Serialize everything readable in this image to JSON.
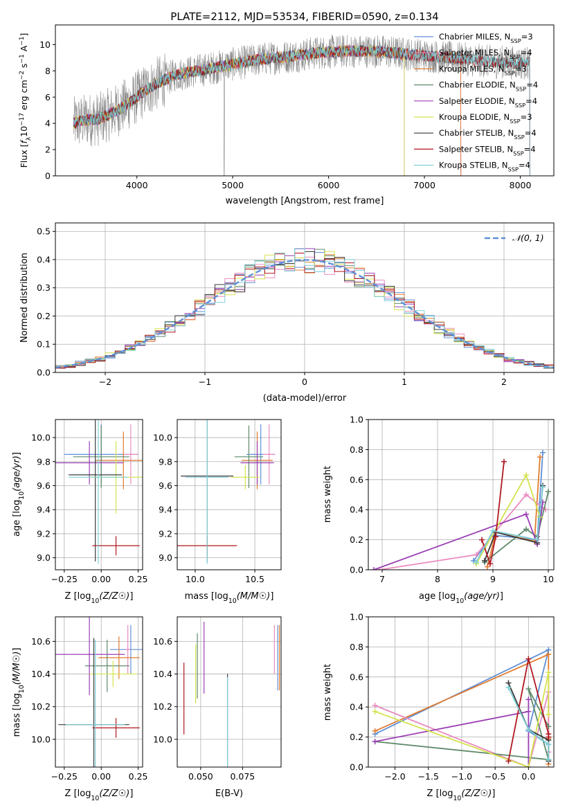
{
  "figure_title": "PLATE=2112, MJD=53534, FIBERID=0590, z=0.134",
  "colors": {
    "c0": "#5f8fd6",
    "c1": "#e07b2e",
    "c2": "#d9a04a",
    "c3": "#5e8a6a",
    "c4": "#9b3fb4",
    "c5": "#d4e24c",
    "c6": "#3a3a3a",
    "c7": "#b0161e",
    "c8": "#7fd0d8",
    "c9": "#e98bbf",
    "gray": "#8a8a8a",
    "grid": "#b0b0b0",
    "normal": "#5f8fd6"
  },
  "chart_data": [
    {
      "type": "line",
      "id": "spectrum",
      "title": "PLATE=2112, MJD=53534, FIBERID=0590, z=0.134",
      "xlabel": "wavelength [Angstrom, rest frame]",
      "ylabel": "Flux [f_λ 10^-17 erg cm^-2 s^-1 A^-1]",
      "xlim": [
        3150,
        8350
      ],
      "ylim": [
        0,
        11.5
      ],
      "xticks": [
        4000,
        5000,
        6000,
        7000,
        8000
      ],
      "yticks": [
        0,
        2,
        4,
        6,
        8,
        10
      ],
      "grid": false,
      "legend_position": "right",
      "data_color": "gray",
      "continuum": {
        "x": [
          3340,
          3500,
          3600,
          3800,
          3950,
          4050,
          4200,
          4400,
          4700,
          5000,
          5300,
          5600,
          5900,
          6200,
          6500,
          6800,
          7100,
          7400,
          7700,
          8000,
          8100
        ],
        "y": [
          4.0,
          4.3,
          4.3,
          5.0,
          5.7,
          6.3,
          7.0,
          7.7,
          8.1,
          8.5,
          8.9,
          9.1,
          9.4,
          9.5,
          9.5,
          9.3,
          9.1,
          8.9,
          8.7,
          8.6,
          8.6
        ]
      },
      "series": [
        {
          "name": "Chabrier MILES, N_SSP=3",
          "color": "c0",
          "xmax": 7380
        },
        {
          "name": "Salpeter MILES, N_SSP=4",
          "color": "c9",
          "xmax": 7380
        },
        {
          "name": "Kroupa MILES, N_SSP=3",
          "color": "c1",
          "xmax": 7380
        },
        {
          "name": "Chabrier ELODIE, N_SSP=4",
          "color": "c3",
          "xmax": 6790
        },
        {
          "name": "Salpeter ELODIE, N_SSP=4",
          "color": "c4",
          "xmax": 6790
        },
        {
          "name": "Kroupa ELODIE, N_SSP=3",
          "color": "c5",
          "xmax": 6790
        },
        {
          "name": "Chabrier STELIB, N_SSP=4",
          "color": "c6",
          "xmax": 8100
        },
        {
          "name": "Salpeter STELIB, N_SSP=4",
          "color": "c7",
          "xmax": 8100
        },
        {
          "name": "Kroupa STELIB, N_SSP=4",
          "color": "c8",
          "xmax": 8100
        }
      ]
    },
    {
      "type": "area",
      "id": "residuals",
      "xlabel": "(data-model)/error",
      "ylabel": "Normed distribution",
      "xlim": [
        -2.5,
        2.5
      ],
      "ylim": [
        0,
        0.53
      ],
      "xticks": [
        -2,
        -1,
        0,
        1,
        2
      ],
      "yticks": [
        0.0,
        0.1,
        0.2,
        0.3,
        0.4,
        0.5
      ],
      "grid": true,
      "legend_position": "top-right",
      "legend": [
        "N(0,1)"
      ],
      "bin_width": 0.1,
      "hist_colors": [
        "c0",
        "c9",
        "c1",
        "c3",
        "c4",
        "c5",
        "c6",
        "c7",
        "c8"
      ]
    },
    {
      "type": "scatter",
      "id": "age_vs_Z",
      "xlabel": "Z [log10(Z/Z_sun)]",
      "ylabel": "age [log10(age/yr)]",
      "xlim": [
        -0.31,
        0.28
      ],
      "ylim": [
        8.9,
        10.15
      ],
      "xticks": [
        -0.25,
        0.0,
        0.25
      ],
      "yticks": [
        9.0,
        9.2,
        9.4,
        9.6,
        9.8,
        10.0
      ],
      "grid": true,
      "points": [
        {
          "x": 0.0,
          "y": 9.86,
          "xerr": 0.25,
          "yerr": 0.25,
          "color": "c0"
        },
        {
          "x": 0.2,
          "y": 9.86,
          "xerr": 0.05,
          "yerr": 0.25,
          "color": "c9"
        },
        {
          "x": 0.15,
          "y": 9.81,
          "xerr": 0.19,
          "yerr": 0.24,
          "color": "c1"
        },
        {
          "x": 0.0,
          "y": 9.84,
          "xerr": 0.19,
          "yerr": 0.26,
          "color": "c3"
        },
        {
          "x": -0.08,
          "y": 9.79,
          "xerr": 0.23,
          "yerr": 0.18,
          "color": "c4"
        },
        {
          "x": 0.1,
          "y": 9.67,
          "xerr": 0.19,
          "yerr": 0.3,
          "color": "c5"
        },
        {
          "x": -0.04,
          "y": 9.69,
          "xerr": 0.18,
          "yerr": 0.72,
          "color": "c6"
        },
        {
          "x": 0.1,
          "y": 9.1,
          "xerr": 0.16,
          "yerr": 0.08,
          "color": "c7"
        },
        {
          "x": -0.02,
          "y": 9.67,
          "xerr": 0.2,
          "yerr": 0.72,
          "color": "c8"
        }
      ]
    },
    {
      "type": "scatter",
      "id": "age_vs_mass",
      "xlabel": "mass [log10(M/M_sun)]",
      "ylabel": "",
      "xlim": [
        9.85,
        10.72
      ],
      "ylim": [
        8.9,
        10.15
      ],
      "xticks": [
        10.0,
        10.5
      ],
      "yticks": [
        9.0,
        9.2,
        9.4,
        9.6,
        9.8,
        10.0
      ],
      "grid": true,
      "points": [
        {
          "x": 10.55,
          "y": 9.86,
          "xerr": 0.12,
          "yerr": 0.25,
          "color": "c0"
        },
        {
          "x": 10.62,
          "y": 9.86,
          "xerr": 0.05,
          "yerr": 0.25,
          "color": "c9"
        },
        {
          "x": 10.52,
          "y": 9.81,
          "xerr": 0.13,
          "yerr": 0.24,
          "color": "c1"
        },
        {
          "x": 10.45,
          "y": 9.84,
          "xerr": 0.12,
          "yerr": 0.26,
          "color": "c3"
        },
        {
          "x": 10.52,
          "y": 9.79,
          "xerr": 0.14,
          "yerr": 0.18,
          "color": "c4"
        },
        {
          "x": 10.42,
          "y": 9.67,
          "xerr": 0.12,
          "yerr": 0.1,
          "color": "c5"
        },
        {
          "x": 10.1,
          "y": 9.68,
          "xerr": 0.22,
          "yerr": 0.72,
          "color": "c6"
        },
        {
          "x": 10.1,
          "y": 9.1,
          "xerr": 0.25,
          "yerr": 0.08,
          "color": "c7"
        },
        {
          "x": 10.1,
          "y": 9.67,
          "xerr": 0.18,
          "yerr": 0.72,
          "color": "c8"
        }
      ]
    },
    {
      "type": "line",
      "id": "weight_vs_age",
      "xlabel": "age [log10(age/yr)]",
      "ylabel": "mass weight",
      "xlim": [
        6.75,
        10.1
      ],
      "ylim": [
        0,
        1.0
      ],
      "xticks": [
        7,
        8,
        9,
        10
      ],
      "yticks": [
        0.0,
        0.2,
        0.4,
        0.6,
        0.8,
        1.0
      ],
      "grid": true,
      "series": [
        {
          "color": "c0",
          "x": [
            8.65,
            9.0,
            9.8,
            9.9
          ],
          "y": [
            0.06,
            0.23,
            0.2,
            0.78
          ]
        },
        {
          "color": "c1",
          "x": [
            8.9,
            9.05,
            9.75,
            9.85
          ],
          "y": [
            0.02,
            0.25,
            0.19,
            0.75
          ]
        },
        {
          "color": "c9",
          "x": [
            6.95,
            8.7,
            9.6,
            9.95
          ],
          "y": [
            0.0,
            0.1,
            0.5,
            0.4
          ]
        },
        {
          "color": "c3",
          "x": [
            8.85,
            9.6,
            9.8,
            10.0
          ],
          "y": [
            0.05,
            0.27,
            0.22,
            0.52
          ]
        },
        {
          "color": "c4",
          "x": [
            6.85,
            9.6,
            9.8,
            9.9
          ],
          "y": [
            0.0,
            0.37,
            0.17,
            0.45
          ]
        },
        {
          "color": "c5",
          "x": [
            8.7,
            9.6,
            9.85
          ],
          "y": [
            0.04,
            0.63,
            0.35
          ]
        },
        {
          "color": "c6",
          "x": [
            8.85,
            9.05,
            9.8,
            9.9
          ],
          "y": [
            0.06,
            0.25,
            0.18,
            0.56
          ]
        },
        {
          "color": "c7",
          "x": [
            8.8,
            8.95,
            9.05,
            9.2
          ],
          "y": [
            0.2,
            0.04,
            0.22,
            0.72
          ]
        },
        {
          "color": "c8",
          "x": [
            8.7,
            9.0,
            9.8,
            9.9
          ],
          "y": [
            0.05,
            0.26,
            0.2,
            0.55
          ]
        }
      ]
    },
    {
      "type": "scatter",
      "id": "mass_vs_Z",
      "xlabel": "Z [log10(Z/Z_sun)]",
      "ylabel": "mass [log10(M/M_sun)]",
      "xlim": [
        -0.31,
        0.28
      ],
      "ylim": [
        9.83,
        10.75
      ],
      "xticks": [
        -0.25,
        0.0,
        0.25
      ],
      "yticks": [
        10.0,
        10.2,
        10.4,
        10.6
      ],
      "grid": true,
      "points": [
        {
          "x": 0.2,
          "y": 10.55,
          "xerr": 0.14,
          "yerr": 0.15,
          "color": "c0"
        },
        {
          "x": 0.18,
          "y": 10.55,
          "xerr": 0.02,
          "yerr": 0.15,
          "color": "c9"
        },
        {
          "x": 0.12,
          "y": 10.5,
          "xerr": 0.14,
          "yerr": 0.13,
          "color": "c1"
        },
        {
          "x": 0.04,
          "y": 10.45,
          "xerr": 0.15,
          "yerr": 0.16,
          "color": "c3"
        },
        {
          "x": -0.08,
          "y": 10.52,
          "xerr": 0.24,
          "yerr": 0.25,
          "color": "c4"
        },
        {
          "x": 0.08,
          "y": 10.4,
          "xerr": 0.16,
          "yerr": 0.08,
          "color": "c5"
        },
        {
          "x": -0.05,
          "y": 10.09,
          "xerr": 0.24,
          "yerr": 0.53,
          "color": "c6"
        },
        {
          "x": 0.1,
          "y": 10.07,
          "xerr": 0.16,
          "yerr": 0.06,
          "color": "c7"
        },
        {
          "x": -0.04,
          "y": 10.09,
          "xerr": 0.2,
          "yerr": 0.52,
          "color": "c8"
        }
      ]
    },
    {
      "type": "scatter",
      "id": "mass_vs_EBV",
      "xlabel": "E(B-V)",
      "ylabel": "",
      "xlim": [
        0.036,
        0.098
      ],
      "ylim": [
        9.83,
        10.75
      ],
      "xticks": [
        0.05,
        0.075
      ],
      "yticks": [
        10.0,
        10.2,
        10.4,
        10.6
      ],
      "grid": true,
      "points": [
        {
          "x": 0.096,
          "y": 10.5,
          "yerr": 0.2,
          "color": "c0"
        },
        {
          "x": 0.094,
          "y": 10.55,
          "yerr": 0.15,
          "color": "c9"
        },
        {
          "x": 0.097,
          "y": 10.5,
          "yerr": 0.2,
          "color": "c1"
        },
        {
          "x": 0.048,
          "y": 10.45,
          "yerr": 0.2,
          "color": "c3"
        },
        {
          "x": 0.052,
          "y": 10.5,
          "yerr": 0.22,
          "color": "c4"
        },
        {
          "x": 0.047,
          "y": 10.4,
          "yerr": 0.18,
          "color": "c5"
        },
        {
          "x": 0.066,
          "y": 10.1,
          "yerr": 0.3,
          "color": "c6"
        },
        {
          "x": 0.04,
          "y": 10.25,
          "yerr": 0.22,
          "color": "c7"
        },
        {
          "x": 0.066,
          "y": 10.1,
          "yerr": 0.28,
          "color": "c8"
        }
      ]
    },
    {
      "type": "line",
      "id": "weight_vs_Z",
      "xlabel": "Z [log10(Z/Z_sun)]",
      "ylabel": "mass weight",
      "xlim": [
        -2.4,
        0.38
      ],
      "ylim": [
        0,
        1.0
      ],
      "xticks": [
        -2.0,
        -1.5,
        -1.0,
        -0.5,
        0.0
      ],
      "yticks": [
        0.0,
        0.2,
        0.4,
        0.6,
        0.8,
        1.0
      ],
      "grid": true,
      "series": [
        {
          "color": "c0",
          "x": [
            -2.3,
            0.3,
            0.0,
            0.3
          ],
          "y": [
            0.22,
            0.78,
            0.24,
            0.15
          ]
        },
        {
          "color": "c1",
          "x": [
            -2.3,
            0.3,
            0.3,
            0.3
          ],
          "y": [
            0.24,
            0.75,
            0.02,
            0.19
          ]
        },
        {
          "color": "c9",
          "x": [
            -2.3,
            0.0,
            0.3,
            0.3
          ],
          "y": [
            0.41,
            0.0,
            0.5,
            0.1
          ]
        },
        {
          "color": "c3",
          "x": [
            -2.3,
            0.3,
            0.0,
            0.3
          ],
          "y": [
            0.17,
            0.05,
            0.52,
            0.27
          ]
        },
        {
          "color": "c4",
          "x": [
            -2.3,
            0.0,
            0.0,
            0.0
          ],
          "y": [
            0.17,
            0.37,
            0.45,
            0.0
          ]
        },
        {
          "color": "c5",
          "x": [
            -2.3,
            0.0,
            0.3,
            0.3
          ],
          "y": [
            0.37,
            0.0,
            0.63,
            0.35
          ]
        },
        {
          "color": "c6",
          "x": [
            -0.3,
            0.0,
            0.3,
            0.3
          ],
          "y": [
            0.56,
            0.25,
            0.18,
            0.04
          ]
        },
        {
          "color": "c7",
          "x": [
            -0.3,
            0.0,
            0.3,
            0.3
          ],
          "y": [
            0.04,
            0.72,
            0.22,
            0.2
          ]
        },
        {
          "color": "c8",
          "x": [
            -0.3,
            0.0,
            0.3,
            0.3
          ],
          "y": [
            0.53,
            0.25,
            0.15,
            0.05
          ]
        }
      ]
    }
  ]
}
